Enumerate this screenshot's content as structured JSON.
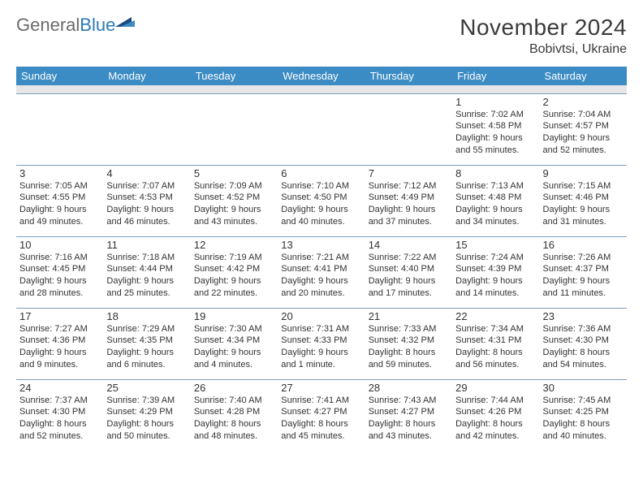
{
  "logo": {
    "word1": "General",
    "word2": "Blue"
  },
  "title": "November 2024",
  "location": "Bobivtsi, Ukraine",
  "colors": {
    "header_bg": "#3b8bc4",
    "header_text": "#ffffff",
    "subheader_bg": "#e6e6e6",
    "cell_border": "#7a9dbf",
    "text": "#333333",
    "logo_gray": "#6b6b6b",
    "logo_blue": "#2a7ab8",
    "logo_icon_dark": "#1a4d80",
    "logo_icon_light": "#3b8bc4"
  },
  "day_headers": [
    "Sunday",
    "Monday",
    "Tuesday",
    "Wednesday",
    "Thursday",
    "Friday",
    "Saturday"
  ],
  "weeks": [
    [
      null,
      null,
      null,
      null,
      null,
      {
        "n": "1",
        "sr": "7:02 AM",
        "ss": "4:58 PM",
        "dl": "9 hours and 55 minutes."
      },
      {
        "n": "2",
        "sr": "7:04 AM",
        "ss": "4:57 PM",
        "dl": "9 hours and 52 minutes."
      }
    ],
    [
      {
        "n": "3",
        "sr": "7:05 AM",
        "ss": "4:55 PM",
        "dl": "9 hours and 49 minutes."
      },
      {
        "n": "4",
        "sr": "7:07 AM",
        "ss": "4:53 PM",
        "dl": "9 hours and 46 minutes."
      },
      {
        "n": "5",
        "sr": "7:09 AM",
        "ss": "4:52 PM",
        "dl": "9 hours and 43 minutes."
      },
      {
        "n": "6",
        "sr": "7:10 AM",
        "ss": "4:50 PM",
        "dl": "9 hours and 40 minutes."
      },
      {
        "n": "7",
        "sr": "7:12 AM",
        "ss": "4:49 PM",
        "dl": "9 hours and 37 minutes."
      },
      {
        "n": "8",
        "sr": "7:13 AM",
        "ss": "4:48 PM",
        "dl": "9 hours and 34 minutes."
      },
      {
        "n": "9",
        "sr": "7:15 AM",
        "ss": "4:46 PM",
        "dl": "9 hours and 31 minutes."
      }
    ],
    [
      {
        "n": "10",
        "sr": "7:16 AM",
        "ss": "4:45 PM",
        "dl": "9 hours and 28 minutes."
      },
      {
        "n": "11",
        "sr": "7:18 AM",
        "ss": "4:44 PM",
        "dl": "9 hours and 25 minutes."
      },
      {
        "n": "12",
        "sr": "7:19 AM",
        "ss": "4:42 PM",
        "dl": "9 hours and 22 minutes."
      },
      {
        "n": "13",
        "sr": "7:21 AM",
        "ss": "4:41 PM",
        "dl": "9 hours and 20 minutes."
      },
      {
        "n": "14",
        "sr": "7:22 AM",
        "ss": "4:40 PM",
        "dl": "9 hours and 17 minutes."
      },
      {
        "n": "15",
        "sr": "7:24 AM",
        "ss": "4:39 PM",
        "dl": "9 hours and 14 minutes."
      },
      {
        "n": "16",
        "sr": "7:26 AM",
        "ss": "4:37 PM",
        "dl": "9 hours and 11 minutes."
      }
    ],
    [
      {
        "n": "17",
        "sr": "7:27 AM",
        "ss": "4:36 PM",
        "dl": "9 hours and 9 minutes."
      },
      {
        "n": "18",
        "sr": "7:29 AM",
        "ss": "4:35 PM",
        "dl": "9 hours and 6 minutes."
      },
      {
        "n": "19",
        "sr": "7:30 AM",
        "ss": "4:34 PM",
        "dl": "9 hours and 4 minutes."
      },
      {
        "n": "20",
        "sr": "7:31 AM",
        "ss": "4:33 PM",
        "dl": "9 hours and 1 minute."
      },
      {
        "n": "21",
        "sr": "7:33 AM",
        "ss": "4:32 PM",
        "dl": "8 hours and 59 minutes."
      },
      {
        "n": "22",
        "sr": "7:34 AM",
        "ss": "4:31 PM",
        "dl": "8 hours and 56 minutes."
      },
      {
        "n": "23",
        "sr": "7:36 AM",
        "ss": "4:30 PM",
        "dl": "8 hours and 54 minutes."
      }
    ],
    [
      {
        "n": "24",
        "sr": "7:37 AM",
        "ss": "4:30 PM",
        "dl": "8 hours and 52 minutes."
      },
      {
        "n": "25",
        "sr": "7:39 AM",
        "ss": "4:29 PM",
        "dl": "8 hours and 50 minutes."
      },
      {
        "n": "26",
        "sr": "7:40 AM",
        "ss": "4:28 PM",
        "dl": "8 hours and 48 minutes."
      },
      {
        "n": "27",
        "sr": "7:41 AM",
        "ss": "4:27 PM",
        "dl": "8 hours and 45 minutes."
      },
      {
        "n": "28",
        "sr": "7:43 AM",
        "ss": "4:27 PM",
        "dl": "8 hours and 43 minutes."
      },
      {
        "n": "29",
        "sr": "7:44 AM",
        "ss": "4:26 PM",
        "dl": "8 hours and 42 minutes."
      },
      {
        "n": "30",
        "sr": "7:45 AM",
        "ss": "4:25 PM",
        "dl": "8 hours and 40 minutes."
      }
    ]
  ],
  "labels": {
    "sunrise": "Sunrise:",
    "sunset": "Sunset:",
    "daylight": "Daylight:"
  }
}
